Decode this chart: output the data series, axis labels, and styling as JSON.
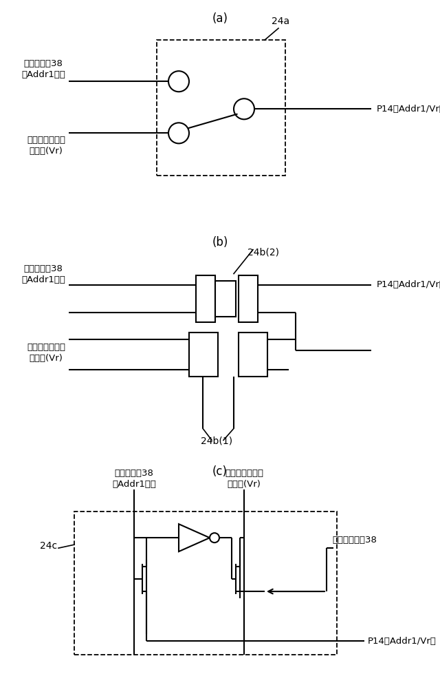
{
  "bg_color": "#ffffff",
  "line_color": "#000000",
  "sections": [
    "(a)",
    "(b)",
    "(c)"
  ],
  "label_addr1": "第一制御郥38\nのAddr1ピン",
  "label_vr": "レギュレー㥖の\n出力端(Vr)",
  "label_p14": "P14（Addr1/Vr）",
  "label_24a": "24a",
  "label_24b1": "24b(1)",
  "label_24b2": "24b(2)",
  "label_24c": "24c",
  "label_ctrl38": "第一制御回路38",
  "label_addr1_c": "第一制御郥38\nのAddr1ピン",
  "label_vr_c": "レギュレー㥖の\n出力端(Vr)"
}
